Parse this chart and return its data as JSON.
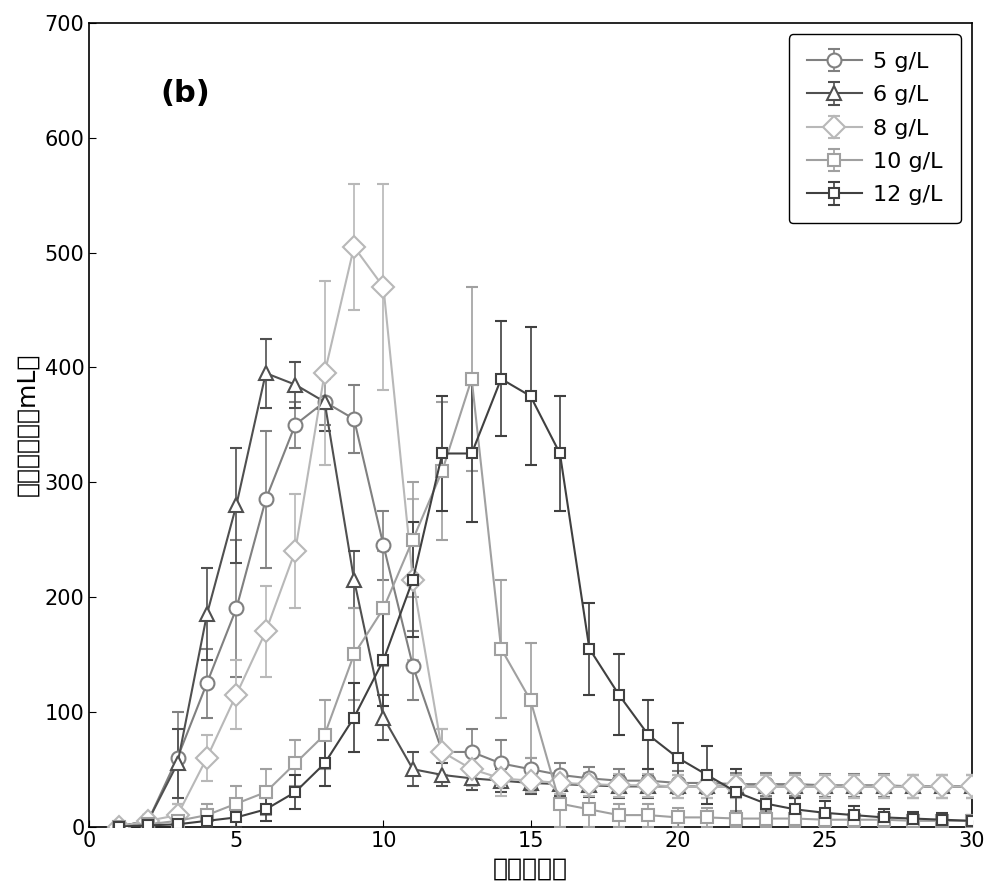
{
  "title_label": "(b)",
  "xlabel": "时间（天）",
  "ylabel": "甲烷日产量（mL）",
  "xlim": [
    0,
    30
  ],
  "ylim": [
    0,
    700
  ],
  "xticks": [
    0,
    5,
    10,
    15,
    20,
    25,
    30
  ],
  "yticks": [
    0,
    100,
    200,
    300,
    400,
    500,
    600,
    700
  ],
  "series": [
    {
      "label": "5 g/L",
      "color": "#808080",
      "marker": "o",
      "markersize": 10,
      "linewidth": 1.5,
      "x": [
        1,
        2,
        3,
        4,
        5,
        6,
        7,
        8,
        9,
        10,
        11,
        12,
        13,
        14,
        15,
        16,
        17,
        18,
        19,
        20,
        21,
        22,
        23,
        24,
        25,
        26,
        27,
        28,
        29,
        30
      ],
      "y": [
        0,
        5,
        60,
        125,
        190,
        285,
        350,
        370,
        355,
        245,
        140,
        65,
        65,
        55,
        50,
        45,
        42,
        40,
        40,
        38,
        38,
        37,
        37,
        37,
        36,
        36,
        36,
        35,
        35,
        35
      ],
      "yerr": [
        0,
        5,
        40,
        30,
        60,
        60,
        20,
        20,
        30,
        30,
        30,
        20,
        20,
        20,
        10,
        10,
        10,
        10,
        10,
        10,
        10,
        10,
        10,
        10,
        10,
        10,
        10,
        10,
        10,
        10
      ]
    },
    {
      "label": "6 g/L",
      "color": "#505050",
      "marker": "^",
      "markersize": 10,
      "linewidth": 1.5,
      "x": [
        1,
        2,
        3,
        4,
        5,
        6,
        7,
        8,
        9,
        10,
        11,
        12,
        13,
        14,
        15,
        16,
        17,
        18,
        19,
        20,
        21,
        22,
        23,
        24,
        25,
        26,
        27,
        28,
        29,
        30
      ],
      "y": [
        0,
        5,
        55,
        185,
        280,
        395,
        385,
        370,
        215,
        95,
        50,
        45,
        42,
        40,
        38,
        37,
        36,
        35,
        35,
        35,
        35,
        35,
        35,
        35,
        35,
        35,
        35,
        35,
        35,
        35
      ],
      "yerr": [
        0,
        5,
        30,
        40,
        50,
        30,
        20,
        25,
        25,
        20,
        15,
        10,
        10,
        10,
        10,
        10,
        10,
        10,
        10,
        10,
        10,
        10,
        10,
        10,
        10,
        10,
        10,
        10,
        10,
        10
      ]
    },
    {
      "label": "8 g/L",
      "color": "#b8b8b8",
      "marker": "D",
      "markersize": 11,
      "linewidth": 1.5,
      "x": [
        1,
        2,
        3,
        4,
        5,
        6,
        7,
        8,
        9,
        10,
        11,
        12,
        13,
        14,
        15,
        16,
        17,
        18,
        19,
        20,
        21,
        22,
        23,
        24,
        25,
        26,
        27,
        28,
        29,
        30
      ],
      "y": [
        0,
        5,
        10,
        60,
        115,
        170,
        240,
        395,
        505,
        470,
        215,
        65,
        50,
        42,
        40,
        38,
        37,
        36,
        36,
        35,
        35,
        35,
        35,
        35,
        35,
        35,
        35,
        35,
        35,
        35
      ],
      "yerr": [
        0,
        5,
        10,
        20,
        30,
        40,
        50,
        80,
        55,
        90,
        70,
        20,
        15,
        15,
        10,
        10,
        10,
        10,
        10,
        10,
        10,
        10,
        10,
        10,
        10,
        10,
        10,
        10,
        10,
        10
      ]
    },
    {
      "label": "10 g/L",
      "color": "#a0a0a0",
      "marker": "s",
      "markersize": 9,
      "linewidth": 1.5,
      "x": [
        1,
        2,
        3,
        4,
        5,
        6,
        7,
        8,
        9,
        10,
        11,
        12,
        13,
        14,
        15,
        16,
        17,
        18,
        19,
        20,
        21,
        22,
        23,
        24,
        25,
        26,
        27,
        28,
        29,
        30
      ],
      "y": [
        0,
        2,
        5,
        10,
        20,
        30,
        55,
        80,
        150,
        190,
        250,
        310,
        390,
        155,
        110,
        20,
        15,
        10,
        10,
        8,
        8,
        7,
        7,
        7,
        6,
        6,
        6,
        5,
        5,
        5
      ],
      "yerr": [
        0,
        2,
        5,
        10,
        15,
        20,
        20,
        30,
        40,
        50,
        50,
        60,
        80,
        60,
        50,
        20,
        15,
        10,
        10,
        8,
        8,
        7,
        7,
        7,
        6,
        6,
        6,
        5,
        5,
        5
      ]
    },
    {
      "label": "12 g/L",
      "color": "#404040",
      "marker": "s",
      "markersize": 7,
      "linewidth": 1.5,
      "x": [
        1,
        2,
        3,
        4,
        5,
        6,
        7,
        8,
        9,
        10,
        11,
        12,
        13,
        14,
        15,
        16,
        17,
        18,
        19,
        20,
        21,
        22,
        23,
        24,
        25,
        26,
        27,
        28,
        29,
        30
      ],
      "y": [
        0,
        1,
        2,
        5,
        8,
        15,
        30,
        55,
        95,
        145,
        215,
        325,
        325,
        390,
        375,
        325,
        155,
        115,
        80,
        60,
        45,
        30,
        20,
        15,
        12,
        10,
        8,
        7,
        6,
        5
      ],
      "yerr": [
        0,
        1,
        2,
        5,
        8,
        10,
        15,
        20,
        30,
        40,
        50,
        50,
        60,
        50,
        60,
        50,
        40,
        35,
        30,
        30,
        25,
        20,
        15,
        10,
        10,
        8,
        7,
        6,
        6,
        5
      ]
    }
  ],
  "background_color": "#ffffff",
  "legend_fontsize": 16,
  "axis_fontsize": 18,
  "tick_fontsize": 15,
  "title_fontsize": 22
}
